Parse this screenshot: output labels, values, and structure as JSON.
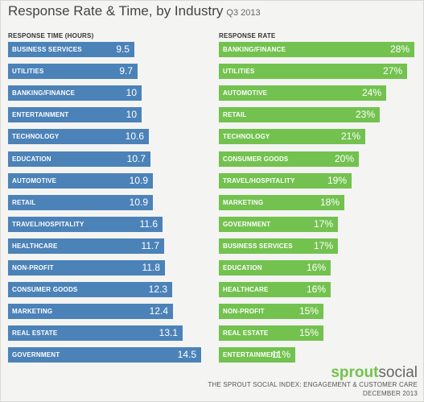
{
  "title": "Response Rate & Time, by Industry",
  "subtitle": "Q3 2013",
  "colors": {
    "time": "#4b82b8",
    "rate": "#73c24f",
    "text": "#444444"
  },
  "chart_data": [
    {
      "type": "bar",
      "orientation": "horizontal",
      "header": "RESPONSE TIME (HOURS)",
      "categories": [
        "BUSINESS SERVICES",
        "UTILITIES",
        "BANKING/FINANCE",
        "ENTERTAINMENT",
        "TECHNOLOGY",
        "EDUCATION",
        "AUTOMOTIVE",
        "RETAIL",
        "TRAVEL/HOSPITALITY",
        "HEALTHCARE",
        "NON-PROFIT",
        "CONSUMER GOODS",
        "MARKETING",
        "REAL ESTATE",
        "GOVERNMENT"
      ],
      "values": [
        9.5,
        9.7,
        10,
        10,
        10.6,
        10.7,
        10.9,
        10.9,
        11.6,
        11.7,
        11.8,
        12.3,
        12.4,
        13.1,
        14.5
      ],
      "labels": [
        "9.5",
        "9.7",
        "10",
        "10",
        "10.6",
        "10.7",
        "10.9",
        "10.9",
        "11.6",
        "11.7",
        "11.8",
        "12.3",
        "12.4",
        "13.1",
        "14.5"
      ]
    },
    {
      "type": "bar",
      "orientation": "horizontal",
      "header": "RESPONSE RATE",
      "categories": [
        "BANKING/FINANCE",
        "UTILITIES",
        "AUTOMOTIVE",
        "RETAIL",
        "TECHNOLOGY",
        "CONSUMER GOODS",
        "TRAVEL/HOSPITALITY",
        "MARKETING",
        "GOVERNMENT",
        "BUSINESS SERVICES",
        "EDUCATION",
        "HEALTHCARE",
        "NON-PROFIT",
        "REAL ESTATE",
        "ENTERTAINMENT"
      ],
      "values": [
        28,
        27,
        24,
        23,
        21,
        20,
        19,
        18,
        17,
        17,
        16,
        16,
        15,
        15,
        11
      ],
      "labels": [
        "28%",
        "27%",
        "24%",
        "23%",
        "21%",
        "20%",
        "19%",
        "18%",
        "17%",
        "17%",
        "16%",
        "16%",
        "15%",
        "15%",
        "11%"
      ]
    }
  ],
  "logo": {
    "part1": "sprout",
    "part2": "social"
  },
  "footer": {
    "line1": "THE SPROUT SOCIAL INDEX: ENGAGEMENT & CUSTOMER CARE",
    "line2": "DECEMBER 2013"
  }
}
